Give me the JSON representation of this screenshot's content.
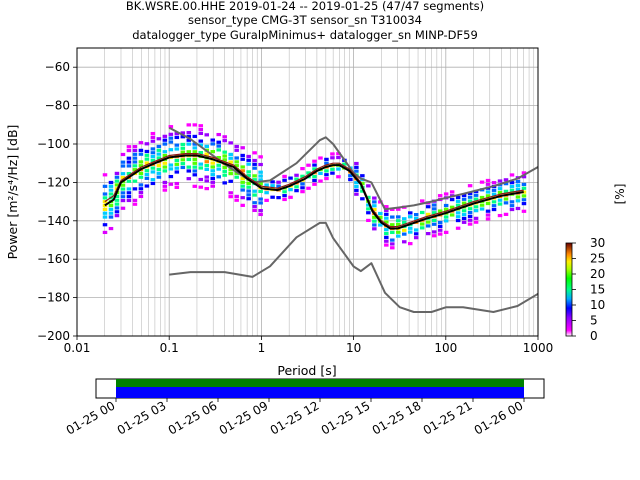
{
  "chart_data": {
    "type": "heatmap",
    "title_lines": [
      "BK.WSRE.00.HHE   2019-01-24 -- 2019-01-25  (47/47 segments)",
      "sensor_type CMG-3T sensor_sn T310034",
      "datalogger_type GuralpMinimus+ datalogger_sn MINP-DF59"
    ],
    "xlabel": "Period [s]",
    "ylabel": "Power [m²/s⁴/Hz] [dB]",
    "xscale": "log",
    "xlim": [
      0.01,
      1000
    ],
    "ylim": [
      -200,
      -50
    ],
    "xticks": [
      0.01,
      0.1,
      1,
      10,
      100,
      1000
    ],
    "xticklabels": [
      "0.01",
      "0.1",
      "1",
      "10",
      "100",
      "1000"
    ],
    "yticks": [
      -200,
      -180,
      -160,
      -140,
      -120,
      -100,
      -80,
      -60
    ],
    "yticklabels": [
      "−200",
      "−180",
      "−160",
      "−140",
      "−120",
      "−100",
      "−80",
      "−60"
    ],
    "grid": true,
    "colorbar": {
      "label": "[%]",
      "range": [
        0,
        30
      ],
      "ticks": [
        "0",
        "5",
        "10",
        "15",
        "20",
        "25",
        "30"
      ]
    },
    "series": [
      {
        "role": "mode",
        "color": "#000000",
        "x": [
          0.02,
          0.025,
          0.03,
          0.05,
          0.07,
          0.1,
          0.15,
          0.2,
          0.3,
          0.5,
          0.7,
          1.0,
          1.5,
          2.0,
          3.0,
          4.0,
          5.0,
          6.0,
          7.0,
          9.0,
          12,
          16,
          20,
          25,
          30,
          40,
          60,
          100,
          200,
          400,
          700
        ],
        "y": [
          -132,
          -129,
          -120,
          -113,
          -110,
          -107,
          -106,
          -106,
          -108,
          -112,
          -118,
          -123,
          -124,
          -122,
          -118,
          -114,
          -112,
          -111,
          -111,
          -114,
          -121,
          -135,
          -141,
          -144,
          -144,
          -142,
          -139,
          -136,
          -131,
          -127,
          -125
        ]
      },
      {
        "role": "mean",
        "color": "#8b1a1a",
        "x": [
          0.02,
          0.025,
          0.03,
          0.05,
          0.07,
          0.1,
          0.15,
          0.2,
          0.3,
          0.5,
          0.7,
          1.0,
          1.5,
          2.0,
          3.0,
          4.0,
          5.0,
          6.0,
          7.0,
          9.0,
          12,
          16,
          20,
          25,
          30,
          40,
          60,
          100,
          200,
          400,
          700
        ],
        "y": [
          -130,
          -127,
          -119,
          -112,
          -109,
          -106,
          -105,
          -105,
          -107,
          -111,
          -117,
          -122,
          -123,
          -121,
          -117,
          -113,
          -111,
          -110,
          -110,
          -113,
          -120,
          -134,
          -140,
          -143,
          -143,
          -141,
          -138,
          -135,
          -130,
          -126,
          -124
        ]
      },
      {
        "role": "nhnm",
        "color": "#666666",
        "x": [
          0.1,
          0.17,
          0.4,
          0.8,
          1.24,
          2.4,
          4.3,
          5.0,
          6.0,
          10,
          12,
          15.6,
          21.9,
          31.6,
          45,
          70,
          101,
          154,
          328,
          600,
          1000
        ],
        "y": [
          -91.5,
          -97.4,
          -110.5,
          -120,
          -119,
          -110,
          -98,
          -96.5,
          -100,
          -115,
          -118,
          -120,
          -134,
          -133,
          -132,
          -130,
          -128,
          -126,
          -122,
          -118,
          -112
        ]
      },
      {
        "role": "nlnm",
        "color": "#666666",
        "x": [
          0.1,
          0.17,
          0.4,
          0.8,
          1.24,
          2.4,
          4.3,
          5.0,
          6.0,
          10,
          12,
          15.6,
          21.9,
          31.6,
          45,
          70,
          101,
          154,
          328,
          600,
          1000
        ],
        "y": [
          -168,
          -166.7,
          -166.7,
          -169.2,
          -163.7,
          -148.6,
          -141.1,
          -141.1,
          -149,
          -163.8,
          -166.2,
          -162.1,
          -177.5,
          -185,
          -187.5,
          -187.5,
          -185,
          -185,
          -187.5,
          -184.4,
          -178
        ]
      }
    ],
    "timeline": {
      "tick_labels": [
        "01-25 00",
        "01-25 03",
        "01-25 06",
        "01-25 09",
        "01-25 12",
        "01-25 15",
        "01-25 18",
        "01-25 21",
        "01-26 00"
      ],
      "bar_colors": [
        "#008000",
        "#0000ff"
      ]
    },
    "colors": {
      "grid": "#b0b0b0",
      "curve_gray": "#666666",
      "mode": "#000000"
    }
  }
}
